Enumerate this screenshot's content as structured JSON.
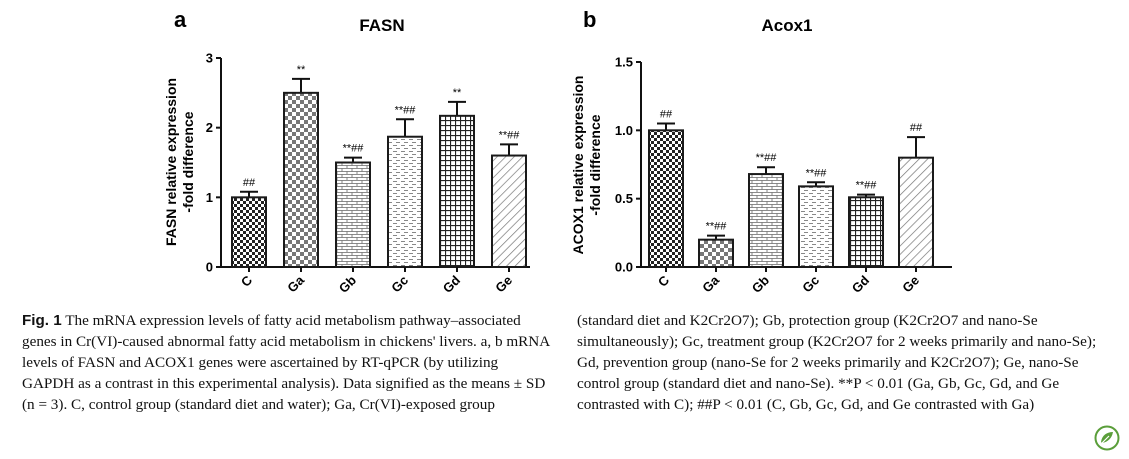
{
  "chart_data": [
    {
      "type": "bar",
      "panel": "a",
      "title": "FASN",
      "ylabel": "FASN relative expression\n-fold difference",
      "categories": [
        "C",
        "Ga",
        "Gb",
        "Gc",
        "Gd",
        "Ge"
      ],
      "values": [
        1.0,
        2.5,
        1.5,
        1.87,
        2.17,
        1.6
      ],
      "errors": [
        0.08,
        0.2,
        0.07,
        0.25,
        0.2,
        0.16
      ],
      "significance": [
        "##",
        "**",
        "**##",
        "**##",
        "**",
        "**##"
      ],
      "ylim": [
        0,
        3
      ],
      "yticks": [
        "0",
        "1",
        "2",
        "3"
      ]
    },
    {
      "type": "bar",
      "panel": "b",
      "title": "Acox1",
      "ylabel": "ACOX1 relative expression\n-fold difference",
      "categories": [
        "C",
        "Ga",
        "Gb",
        "Gc",
        "Gd",
        "Ge"
      ],
      "values": [
        1.0,
        0.2,
        0.68,
        0.59,
        0.51,
        0.8
      ],
      "errors": [
        0.05,
        0.03,
        0.05,
        0.03,
        0.02,
        0.15
      ],
      "significance": [
        "##",
        "**##",
        "**##",
        "**##",
        "**##",
        "##"
      ],
      "ylim": [
        0,
        1.5
      ],
      "yticks": [
        "0.0",
        "0.5",
        "1.0",
        "1.5"
      ]
    }
  ],
  "caption": {
    "fig_label": "Fig. 1",
    "left_text": "The mRNA expression levels of fatty acid metabolism pathway–associated genes in Cr(VI)-caused abnormal fatty acid metabolism in chickens' livers. a, b mRNA levels of FASN and ACOX1 genes were ascertained by RT-qPCR (by utilizing GAPDH as a contrast in this experimental analysis). Data signified as the means ± SD (n = 3). C, control group (standard diet and water); Ga, Cr(VI)-exposed group",
    "right_text": "(standard diet and K2Cr2O7); Gb, protection group (K2Cr2O7 and nano-Se simultaneously); Gc, treatment group (K2Cr2O7 for 2 weeks primarily and nano-Se); Gd, prevention group (nano-Se for 2 weeks primarily and K2Cr2O7); Ge, nano-Se control group (standard diet and nano-Se). **P < 0.01 (Ga, Gb, Gc, Gd, and Ge contrasted with C); ##P < 0.01 (C, Gb, Gc, Gd, and Ge contrasted with Ga)"
  },
  "colors": {
    "bar_stroke": "#1a1a1a",
    "logo": "#5a9e3a"
  }
}
